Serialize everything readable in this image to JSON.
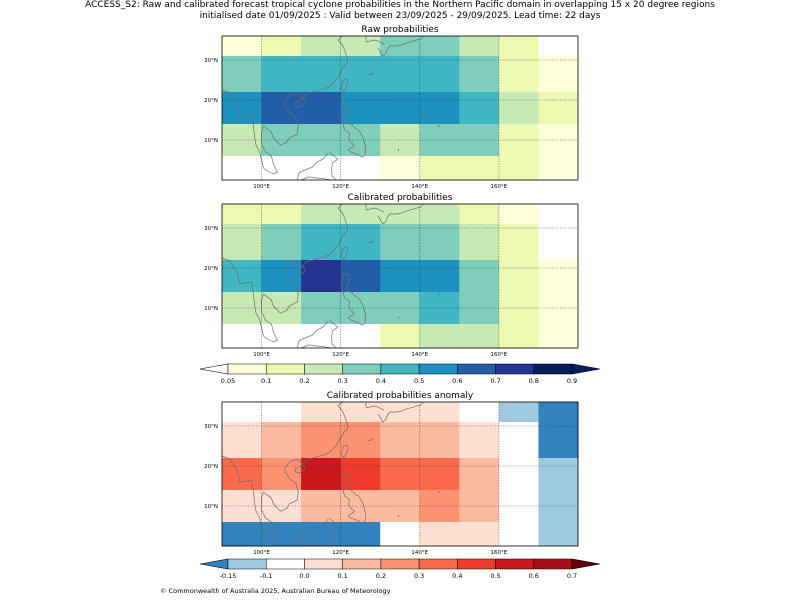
{
  "header": {
    "line1": "ACCESS_S2: Raw and calibrated forecast tropical cyclone probabilities in the Northern Pacific domain in overlapping 15 x 20 degree regions",
    "line2": "initialised date 01/09/2025 :  Valid between 23/09/2025 - 29/09/2025. Lead time: 22 days"
  },
  "credit": "© Commonwealth of Australia 2025, Australian Bureau of Meteorology",
  "axes": {
    "lon_ticks": [
      "100°E",
      "120°E",
      "140°E",
      "160°E"
    ],
    "lat_ticks": [
      "30°N",
      "20°N",
      "10°N"
    ]
  },
  "colorbars": {
    "prob": {
      "labels": [
        "0.05",
        "0.1",
        "0.2",
        "0.3",
        "0.4",
        "0.5",
        "0.6",
        "0.7",
        "0.8",
        "0.9"
      ],
      "colors": [
        "#ffffd9",
        "#edf8b1",
        "#c7e9b4",
        "#7fcdbb",
        "#41b6c4",
        "#1d91c0",
        "#225ea8",
        "#253494",
        "#081d58"
      ],
      "under_color": "#ffffff",
      "over_color": "#081d58"
    },
    "anomaly": {
      "labels": [
        "-0.15",
        "-0.1",
        "0.0",
        "0.1",
        "0.2",
        "0.3",
        "0.4",
        "0.5",
        "0.6",
        "0.7"
      ],
      "colors": [
        "#9ecae1",
        "#ffffff",
        "#fee0d2",
        "#fcbba1",
        "#fc9272",
        "#fb6a4a",
        "#ef3b2c",
        "#cb181d",
        "#a50f15"
      ],
      "under_color": "#3182bd",
      "over_color": "#67000d"
    }
  },
  "chart_data": [
    {
      "type": "heatmap",
      "title": "Raw probabilities",
      "lon_range": [
        90,
        180
      ],
      "lat_range": [
        0,
        36
      ],
      "lon_edges": [
        90,
        100,
        110,
        120,
        130,
        140,
        150,
        160,
        170,
        180
      ],
      "lat_edges": [
        36,
        31,
        22,
        14,
        6,
        0
      ],
      "colorbar": "prob",
      "cells": [
        [
          "#ffffd9",
          "#edf8b1",
          "#c7e9b4",
          "#c7e9b4",
          "#7fcdbb",
          "#7fcdbb",
          "#c7e9b4",
          "#edf8b1",
          "#ffffff"
        ],
        [
          "#7fcdbb",
          "#41b6c4",
          "#41b6c4",
          "#41b6c4",
          "#41b6c4",
          "#41b6c4",
          "#7fcdbb",
          "#edf8b1",
          "#ffffd9"
        ],
        [
          "#1d91c0",
          "#225ea8",
          "#225ea8",
          "#1d91c0",
          "#1d91c0",
          "#1d91c0",
          "#41b6c4",
          "#c7e9b4",
          "#edf8b1"
        ],
        [
          "#c7e9b4",
          "#7fcdbb",
          "#7fcdbb",
          "#7fcdbb",
          "#c7e9b4",
          "#7fcdbb",
          "#7fcdbb",
          "#edf8b1",
          "#ffffd9"
        ],
        [
          "#ffffff",
          "#ffffff",
          "#ffffff",
          "#ffffff",
          "#ffffd9",
          "#edf8b1",
          "#edf8b1",
          "#edf8b1",
          "#ffffd9"
        ]
      ]
    },
    {
      "type": "heatmap",
      "title": "Calibrated probabilities",
      "lon_range": [
        90,
        180
      ],
      "lat_range": [
        0,
        36
      ],
      "lon_edges": [
        90,
        100,
        110,
        120,
        130,
        140,
        150,
        160,
        170,
        180
      ],
      "lat_edges": [
        36,
        31,
        22,
        14,
        6,
        0
      ],
      "colorbar": "prob",
      "cells": [
        [
          "#edf8b1",
          "#edf8b1",
          "#c7e9b4",
          "#c7e9b4",
          "#c7e9b4",
          "#c7e9b4",
          "#edf8b1",
          "#ffffd9",
          "#ffffff"
        ],
        [
          "#c7e9b4",
          "#7fcdbb",
          "#41b6c4",
          "#41b6c4",
          "#7fcdbb",
          "#7fcdbb",
          "#c7e9b4",
          "#edf8b1",
          "#ffffff"
        ],
        [
          "#41b6c4",
          "#1d91c0",
          "#253494",
          "#225ea8",
          "#1d91c0",
          "#1d91c0",
          "#7fcdbb",
          "#edf8b1",
          "#ffffd9"
        ],
        [
          "#c7e9b4",
          "#c7e9b4",
          "#7fcdbb",
          "#7fcdbb",
          "#7fcdbb",
          "#41b6c4",
          "#7fcdbb",
          "#edf8b1",
          "#ffffd9"
        ],
        [
          "#ffffff",
          "#ffffff",
          "#ffffff",
          "#ffffff",
          "#edf8b1",
          "#c7e9b4",
          "#c7e9b4",
          "#edf8b1",
          "#ffffd9"
        ]
      ]
    },
    {
      "type": "heatmap",
      "title": "Calibrated probabilities anomaly",
      "lon_range": [
        90,
        180
      ],
      "lat_range": [
        0,
        36
      ],
      "lon_edges": [
        90,
        100,
        110,
        120,
        130,
        140,
        150,
        160,
        170,
        180
      ],
      "lat_edges": [
        36,
        31,
        22,
        14,
        6,
        0
      ],
      "colorbar": "anomaly",
      "cells": [
        [
          "#ffffff",
          "#ffffff",
          "#fee0d2",
          "#fee0d2",
          "#fee0d2",
          "#fee0d2",
          "#ffffff",
          "#9ecae1",
          "#3182bd"
        ],
        [
          "#fee0d2",
          "#fcbba1",
          "#fc9272",
          "#fc9272",
          "#fcbba1",
          "#fcbba1",
          "#fee0d2",
          "#ffffff",
          "#3182bd"
        ],
        [
          "#fb6a4a",
          "#fc9272",
          "#cb181d",
          "#ef3b2c",
          "#fb6a4a",
          "#fb6a4a",
          "#fcbba1",
          "#ffffff",
          "#9ecae1"
        ],
        [
          "#fee0d2",
          "#fee0d2",
          "#fcbba1",
          "#fcbba1",
          "#fcbba1",
          "#fc9272",
          "#fcbba1",
          "#ffffff",
          "#9ecae1"
        ],
        [
          "#3182bd",
          "#3182bd",
          "#3182bd",
          "#3182bd",
          "#ffffff",
          "#fee0d2",
          "#fee0d2",
          "#ffffff",
          "#9ecae1"
        ]
      ]
    }
  ]
}
